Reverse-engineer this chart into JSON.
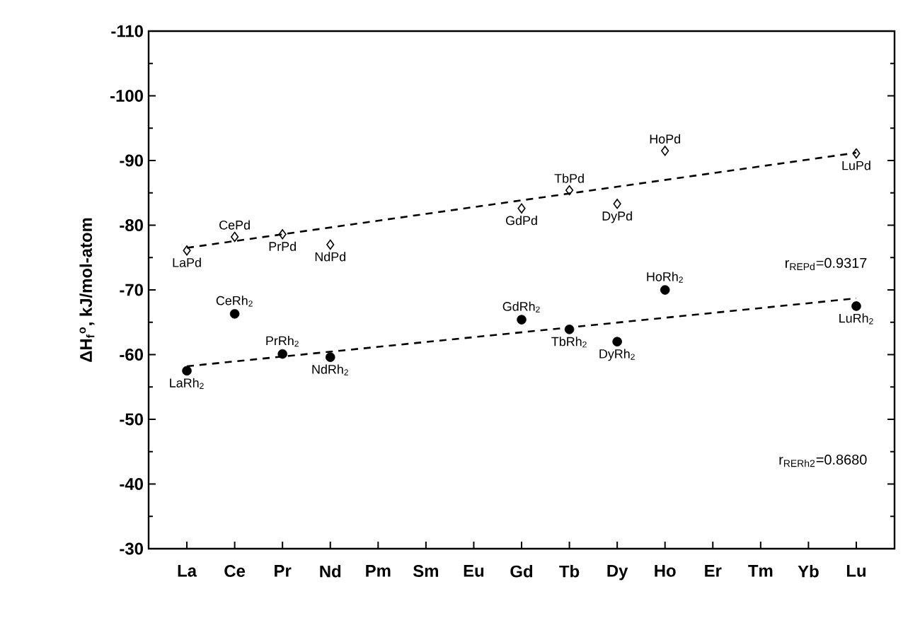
{
  "chart_data": {
    "type": "scatter",
    "ylabel": "ΔH$_{f}$$^{o}$, kJ/mol-atom",
    "categories": [
      "La",
      "Ce",
      "Pr",
      "Nd",
      "Pm",
      "Sm",
      "Eu",
      "Gd",
      "Tb",
      "Dy",
      "Ho",
      "Er",
      "Tm",
      "Yb",
      "Lu"
    ],
    "ylim": [
      -30,
      -110
    ],
    "yticks": [
      -110,
      -100,
      -90,
      -80,
      -70,
      -60,
      -50,
      -40,
      -30
    ],
    "series": [
      {
        "marker": "diamond",
        "color": "#000000",
        "x": [
          "La",
          "Ce",
          "Pr",
          "Nd",
          "Gd",
          "Tb",
          "Dy",
          "Ho",
          "Lu"
        ],
        "values": [
          -76.1,
          -78.2,
          -78.6,
          -77.0,
          -82.6,
          -85.4,
          -83.3,
          -91.5,
          -91.1
        ]
      },
      {
        "marker": "circle",
        "color": "#000000",
        "x": [
          "La",
          "Ce",
          "Pr",
          "Nd",
          "Gd",
          "Tb",
          "Dy",
          "Ho",
          "Lu"
        ],
        "values": [
          -57.5,
          -66.3,
          -60.1,
          -59.6,
          -65.4,
          -63.9,
          -62.0,
          -70.0,
          -67.5
        ]
      },
      {
        "type": "line",
        "line_style": "dashed",
        "marker": "none",
        "color": "#000000",
        "x": [
          "La",
          "Lu"
        ],
        "values": [
          -76.5,
          -91.2
        ]
      },
      {
        "type": "line",
        "line_style": "dashed",
        "marker": "none",
        "color": "#000000",
        "x": [
          "La",
          "Lu"
        ],
        "values": [
          -58.2,
          -68.7
        ]
      }
    ],
    "annotations": [
      {
        "text": "LaPd",
        "x": "La",
        "y": -76.1
      },
      {
        "text": "CePd",
        "x": "Ce",
        "y": -78.2
      },
      {
        "text": "PrPd",
        "x": "Pr",
        "y": -78.6
      },
      {
        "text": "NdPd",
        "x": "Nd",
        "y": -77.0
      },
      {
        "text": "GdPd",
        "x": "Gd",
        "y": -82.6
      },
      {
        "text": "TbPd",
        "x": "Tb",
        "y": -85.4
      },
      {
        "text": "DyPd",
        "x": "Dy",
        "y": -83.3
      },
      {
        "text": "HoPd",
        "x": "Ho",
        "y": -91.5
      },
      {
        "text": "LuPd",
        "x": "Lu",
        "y": -91.1
      },
      {
        "text": "LaRh$_{2}$",
        "x": "La",
        "y": -57.5
      },
      {
        "text": "CeRh$_{2}$",
        "x": "Ce",
        "y": -66.3
      },
      {
        "text": "PrRh$_{2}$",
        "x": "Pr",
        "y": -60.1
      },
      {
        "text": "NdRh$_{2}$",
        "x": "Nd",
        "y": -59.6
      },
      {
        "text": "GdRh$_{2}$",
        "x": "Gd",
        "y": -65.4
      },
      {
        "text": "TbRh$_{2}$",
        "x": "Tb",
        "y": -63.9
      },
      {
        "text": "DyRh$_{2}$",
        "x": "Dy",
        "y": -62.0
      },
      {
        "text": "HoRh$_{2}$",
        "x": "Ho",
        "y": -70.0
      },
      {
        "text": "LuRh$_{2}$",
        "x": "Lu",
        "y": -67.5
      },
      "r$_{REPd}$=0.9317",
      "r$_{RERh2}$=0.8680"
    ]
  }
}
